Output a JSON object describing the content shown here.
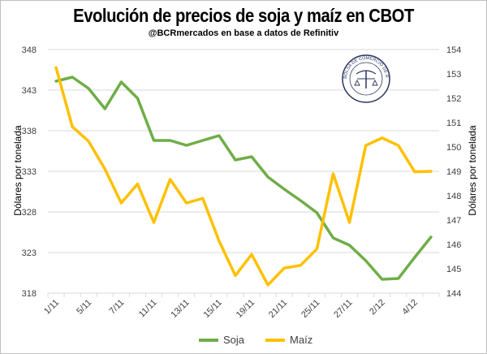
{
  "chart_data": {
    "type": "line",
    "title": "Evolución de precios de soja y maíz en CBOT",
    "subtitle": "@BCRmercados en base a datos de Refinitiv",
    "categories": [
      "1/11",
      "",
      "5/11",
      "",
      "7/11",
      "",
      "11/11",
      "",
      "13/11",
      "",
      "15/11",
      "",
      "19/11",
      "",
      "21/11",
      "",
      "25/11",
      "",
      "27/11",
      "",
      "2/12",
      "",
      "4/12",
      ""
    ],
    "series": [
      {
        "name": "Soja",
        "axis": "left",
        "color": "#70AD47",
        "values": [
          344.1,
          344.6,
          343.2,
          340.7,
          344.0,
          342.0,
          336.8,
          336.8,
          336.2,
          336.8,
          337.4,
          334.4,
          334.8,
          332.3,
          330.8,
          329.4,
          327.9,
          324.8,
          323.9,
          322.0,
          319.7,
          319.8,
          322.4,
          324.9
        ]
      },
      {
        "name": "Maíz",
        "axis": "right",
        "color": "#FFC000",
        "values": [
          153.26,
          150.83,
          150.23,
          149.09,
          147.7,
          148.48,
          146.9,
          148.67,
          147.7,
          147.89,
          146.14,
          144.72,
          145.59,
          144.33,
          145.03,
          145.14,
          145.81,
          148.9,
          146.9,
          150.06,
          150.37,
          150.06,
          148.98,
          149.0
        ]
      }
    ],
    "ylabel": "Dólares por tonelada",
    "ylabel_right": "Dólares por tonelada",
    "ylim": [
      318,
      348
    ],
    "yticks": [
      "318",
      "323",
      "328",
      "333",
      "338",
      "343",
      "348"
    ],
    "ylim_right": [
      144,
      154
    ],
    "yticks_right": [
      "144",
      "145",
      "146",
      "147",
      "148",
      "149",
      "150",
      "151",
      "152",
      "153",
      "154"
    ],
    "grid": true,
    "legend": "bottom"
  },
  "logo_text": "BOLSA DE COMERCIO DE ROSARIO"
}
